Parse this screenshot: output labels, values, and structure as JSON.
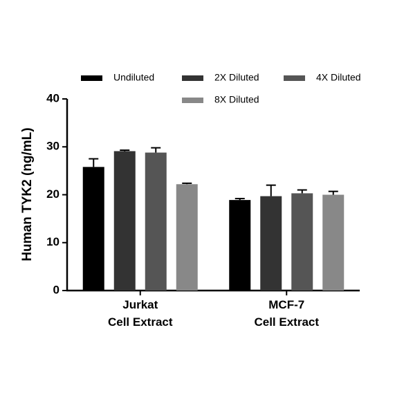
{
  "chart_data": {
    "type": "bar",
    "y_label": "Human TYK2 (ng/mL)",
    "categories": [
      "Jurkat\nCell Extract",
      "MCF-7\nCell Extract"
    ],
    "series": [
      {
        "name": "Undiluted",
        "color": "#000000",
        "values": [
          25.8,
          18.9
        ],
        "errors": [
          1.7,
          0.3
        ]
      },
      {
        "name": "2X Diluted",
        "color": "#333333",
        "values": [
          29.1,
          19.7
        ],
        "errors": [
          0.2,
          2.3
        ]
      },
      {
        "name": "4X Diluted",
        "color": "#555555",
        "values": [
          28.8,
          20.3
        ],
        "errors": [
          1.0,
          0.7
        ]
      },
      {
        "name": "8X Diluted",
        "color": "#888888",
        "values": [
          22.2,
          20.0
        ],
        "errors": [
          0.2,
          0.7
        ]
      }
    ],
    "ylim": [
      0,
      40
    ],
    "yticks": [
      0,
      10,
      20,
      30,
      40
    ],
    "grid": false
  }
}
